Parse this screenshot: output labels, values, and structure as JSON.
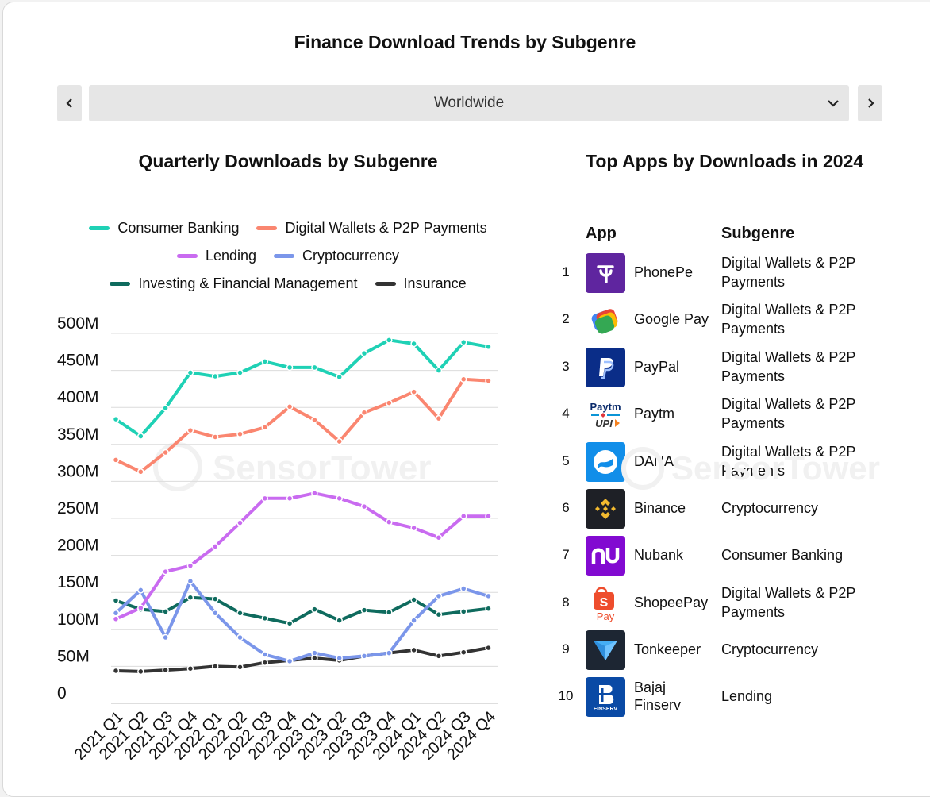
{
  "title": "Finance Download Trends by Subgenre",
  "region": {
    "selected": "Worldwide"
  },
  "left_title": "Quarterly Downloads by Subgenre",
  "right_title": "Top Apps by Downloads in 2024",
  "watermark": "SensorTower",
  "colors": {
    "consumer_banking": "#1fd1b5",
    "digital_wallets": "#fa8670",
    "lending": "#c96bf0",
    "crypto": "#7b96ea",
    "investing": "#0f6b5e",
    "insurance": "#333333"
  },
  "chart_data": {
    "type": "line",
    "title": "Quarterly Downloads by Subgenre",
    "x": [
      "2021 Q1",
      "2021 Q2",
      "2021 Q3",
      "2021 Q4",
      "2022 Q1",
      "2022 Q2",
      "2022 Q3",
      "2022 Q4",
      "2023 Q1",
      "2023 Q2",
      "2023 Q3",
      "2023 Q4",
      "2024 Q1",
      "2024 Q2",
      "2024 Q3",
      "2024 Q4"
    ],
    "ylim": [
      0,
      500
    ],
    "yticks": [
      "0",
      "50M",
      "100M",
      "150M",
      "200M",
      "250M",
      "300M",
      "350M",
      "400M",
      "450M",
      "500M"
    ],
    "grid": true,
    "legend_position": "top",
    "series": [
      {
        "name": "Consumer Banking",
        "color": "#1fd1b5",
        "values": [
          384,
          361,
          399,
          447,
          442,
          447,
          462,
          454,
          454,
          441,
          473,
          491,
          486,
          450,
          488,
          482
        ]
      },
      {
        "name": "Digital Wallets & P2P Payments",
        "color": "#fa8670",
        "values": [
          329,
          313,
          339,
          369,
          360,
          364,
          373,
          401,
          383,
          354,
          393,
          406,
          421,
          385,
          438,
          436
        ]
      },
      {
        "name": "Lending",
        "color": "#c96bf0",
        "values": [
          114,
          129,
          178,
          186,
          212,
          244,
          277,
          277,
          284,
          277,
          266,
          245,
          237,
          224,
          253,
          253
        ]
      },
      {
        "name": "Cryptocurrency",
        "color": "#7b96ea",
        "values": [
          122,
          153,
          89,
          165,
          122,
          89,
          66,
          57,
          68,
          61,
          64,
          68,
          112,
          145,
          155,
          145
        ]
      },
      {
        "name": "Investing & Financial Management",
        "color": "#0f6b5e",
        "values": [
          139,
          127,
          124,
          143,
          141,
          122,
          115,
          108,
          127,
          112,
          126,
          123,
          140,
          120,
          124,
          128
        ]
      },
      {
        "name": "Insurance",
        "color": "#333333",
        "values": [
          44,
          43,
          45,
          47,
          50,
          49,
          55,
          58,
          61,
          58,
          64,
          68,
          72,
          64,
          69,
          75
        ]
      }
    ]
  },
  "table": {
    "headers": {
      "app": "App",
      "subgenre": "Subgenre"
    },
    "rows": [
      {
        "rank": "1",
        "name": "PhonePe",
        "subgenre": "Digital Wallets & P2P Payments",
        "icon": "phonepe-icon"
      },
      {
        "rank": "2",
        "name": "Google Pay",
        "subgenre": "Digital Wallets & P2P Payments",
        "icon": "google-pay-icon"
      },
      {
        "rank": "3",
        "name": "PayPal",
        "subgenre": "Digital Wallets & P2P Payments",
        "icon": "paypal-icon"
      },
      {
        "rank": "4",
        "name": "Paytm",
        "subgenre": "Digital Wallets & P2P Payments",
        "icon": "paytm-icon"
      },
      {
        "rank": "5",
        "name": "DANA",
        "subgenre": "Digital Wallets & P2P Payments",
        "icon": "dana-icon"
      },
      {
        "rank": "6",
        "name": "Binance",
        "subgenre": "Cryptocurrency",
        "icon": "binance-icon"
      },
      {
        "rank": "7",
        "name": "Nubank",
        "subgenre": "Consumer Banking",
        "icon": "nubank-icon"
      },
      {
        "rank": "8",
        "name": "ShopeePay",
        "subgenre": "Digital Wallets & P2P Payments",
        "icon": "shopeepay-icon"
      },
      {
        "rank": "9",
        "name": "Tonkeeper",
        "subgenre": "Cryptocurrency",
        "icon": "tonkeeper-icon"
      },
      {
        "rank": "10",
        "name": "Bajaj Finserv",
        "subgenre": "Lending",
        "icon": "bajaj-finserv-icon"
      }
    ]
  }
}
